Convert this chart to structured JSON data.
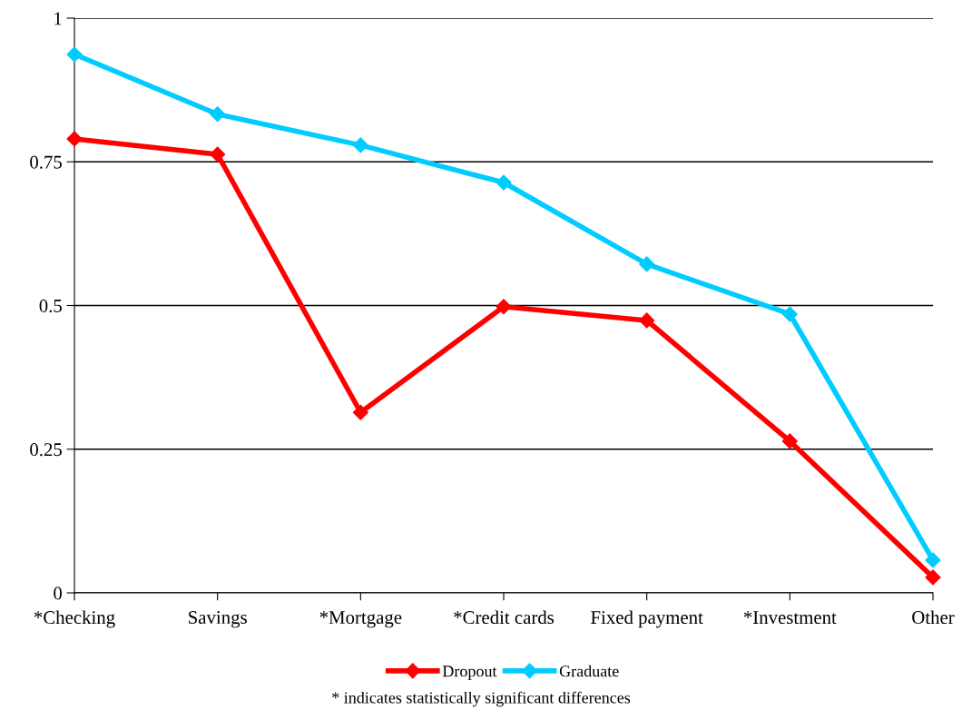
{
  "chart_data": {
    "type": "line",
    "categories": [
      "*Checking",
      "Savings",
      "*Mortgage",
      "*Credit cards",
      "Fixed payment",
      "*Investment",
      "Other"
    ],
    "series": [
      {
        "name": "Dropout",
        "color": "#ff0000",
        "values": [
          0.79,
          0.763,
          0.314,
          0.498,
          0.474,
          0.264,
          0.027
        ]
      },
      {
        "name": "Graduate",
        "color": "#00ccff",
        "values": [
          0.937,
          0.833,
          0.779,
          0.714,
          0.572,
          0.485,
          0.057
        ]
      }
    ],
    "ylim": [
      0,
      1
    ],
    "yticks": [
      0,
      0.25,
      0.5,
      0.75,
      1
    ],
    "grid": "y",
    "legend": "bottom",
    "marker": "diamond",
    "line_style": "solid",
    "annotations": [
      "* indicates statistically significant differences"
    ]
  }
}
